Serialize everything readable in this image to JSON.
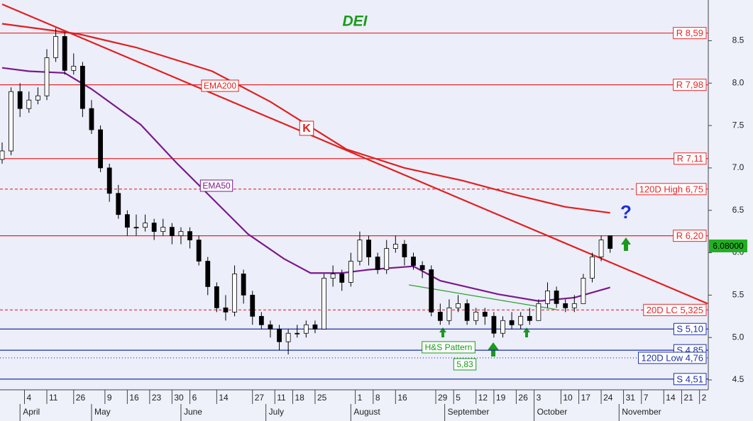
{
  "chart_data": {
    "type": "candlestick",
    "title": "DEI",
    "x": [
      0,
      2,
      4,
      6,
      8,
      10,
      12,
      14,
      16,
      18,
      20,
      22,
      24,
      26,
      28,
      30,
      32,
      34,
      36,
      38,
      40,
      42,
      44,
      46,
      48,
      50,
      52,
      54,
      56,
      58,
      60,
      62,
      64,
      66,
      68,
      70,
      72,
      74,
      76,
      78,
      80,
      82,
      84,
      86,
      88,
      90,
      92,
      94,
      96,
      98,
      100,
      102,
      104,
      106,
      108,
      110,
      112,
      114,
      116,
      118,
      120,
      122,
      124,
      126,
      128,
      130,
      132,
      134,
      136
    ],
    "open": [
      7.1,
      7.2,
      7.9,
      7.7,
      7.8,
      7.85,
      8.3,
      8.55,
      8.15,
      8.2,
      7.7,
      7.45,
      7.0,
      6.7,
      6.45,
      6.3,
      6.3,
      6.35,
      6.25,
      6.3,
      6.2,
      6.25,
      6.15,
      5.9,
      5.6,
      5.35,
      5.3,
      5.75,
      5.5,
      5.25,
      5.15,
      5.1,
      4.95,
      5.05,
      5.05,
      5.15,
      5.1,
      5.7,
      5.75,
      5.65,
      5.9,
      6.15,
      5.95,
      5.8,
      6.05,
      6.1,
      5.95,
      5.85,
      5.8,
      5.3,
      5.2,
      5.35,
      5.4,
      5.2,
      5.3,
      5.25,
      5.05,
      5.2,
      5.15,
      5.25,
      5.2,
      5.4,
      5.55,
      5.4,
      5.35,
      5.4,
      5.7,
      5.95,
      6.2
    ],
    "high": [
      7.3,
      7.95,
      8.0,
      7.9,
      7.95,
      8.4,
      8.65,
      8.6,
      8.35,
      8.25,
      7.8,
      7.5,
      7.05,
      6.8,
      6.5,
      6.45,
      6.45,
      6.4,
      6.4,
      6.35,
      6.3,
      6.3,
      6.2,
      5.95,
      5.65,
      5.5,
      5.85,
      5.8,
      5.55,
      5.3,
      5.2,
      5.15,
      5.1,
      5.15,
      5.2,
      5.2,
      5.75,
      5.85,
      5.8,
      6.0,
      6.25,
      6.2,
      6.0,
      6.15,
      6.2,
      6.15,
      6.0,
      5.9,
      5.85,
      5.4,
      5.45,
      5.5,
      5.45,
      5.35,
      5.35,
      5.3,
      5.25,
      5.3,
      5.3,
      5.35,
      5.45,
      5.65,
      5.6,
      5.45,
      5.5,
      5.75,
      6.0,
      6.2,
      6.2
    ],
    "low": [
      7.05,
      7.15,
      7.6,
      7.65,
      7.75,
      7.8,
      8.25,
      8.1,
      8.1,
      7.6,
      7.4,
      6.95,
      6.6,
      6.4,
      6.2,
      6.2,
      6.25,
      6.15,
      6.2,
      6.1,
      6.1,
      6.05,
      5.85,
      5.5,
      5.3,
      5.2,
      5.25,
      5.4,
      5.15,
      5.1,
      5.0,
      4.85,
      4.8,
      5.0,
      5.0,
      5.05,
      5.1,
      5.6,
      5.55,
      5.6,
      5.85,
      5.85,
      5.75,
      5.75,
      6.0,
      5.85,
      5.8,
      5.7,
      5.25,
      5.15,
      5.15,
      5.3,
      5.15,
      5.15,
      5.15,
      5.0,
      5.0,
      5.1,
      5.1,
      5.15,
      5.2,
      5.35,
      5.35,
      5.3,
      5.3,
      5.4,
      5.65,
      5.9,
      6.0
    ],
    "close": [
      7.2,
      7.9,
      7.7,
      7.8,
      7.85,
      8.3,
      8.55,
      8.15,
      8.2,
      7.7,
      7.45,
      7.0,
      6.7,
      6.45,
      6.3,
      6.3,
      6.35,
      6.25,
      6.3,
      6.2,
      6.25,
      6.15,
      5.9,
      5.6,
      5.35,
      5.3,
      5.75,
      5.5,
      5.25,
      5.15,
      5.1,
      4.95,
      5.05,
      5.05,
      5.15,
      5.1,
      5.7,
      5.75,
      5.65,
      5.9,
      6.15,
      5.95,
      5.8,
      6.05,
      6.1,
      5.95,
      5.85,
      5.8,
      5.3,
      5.2,
      5.35,
      5.4,
      5.2,
      5.3,
      5.25,
      5.05,
      5.2,
      5.15,
      5.25,
      5.2,
      5.4,
      5.55,
      5.4,
      5.35,
      5.4,
      5.7,
      5.95,
      6.15,
      6.05
    ],
    "xlim": [
      0,
      157.8
    ],
    "ylim": [
      4.4,
      8.98
    ],
    "xticks": [
      {
        "value": 5,
        "label": "4"
      },
      {
        "value": 10,
        "label": "11"
      },
      {
        "value": 16,
        "label": "26"
      },
      {
        "value": 23,
        "label": "9"
      },
      {
        "value": 28,
        "label": "16"
      },
      {
        "value": 33,
        "label": "23"
      },
      {
        "value": 38,
        "label": "30"
      },
      {
        "value": 42,
        "label": "6"
      },
      {
        "value": 48,
        "label": "14"
      },
      {
        "value": 56,
        "label": "27"
      },
      {
        "value": 61,
        "label": "11"
      },
      {
        "value": 65,
        "label": "18"
      },
      {
        "value": 70,
        "label": "25"
      },
      {
        "value": 79,
        "label": "1"
      },
      {
        "value": 83,
        "label": "8"
      },
      {
        "value": 88,
        "label": "16"
      },
      {
        "value": 97,
        "label": "29"
      },
      {
        "value": 101,
        "label": "5"
      },
      {
        "value": 106,
        "label": "12"
      },
      {
        "value": 110,
        "label": "19"
      },
      {
        "value": 115,
        "label": "26"
      },
      {
        "value": 119,
        "label": "3"
      },
      {
        "value": 125,
        "label": "10"
      },
      {
        "value": 129,
        "label": "17"
      },
      {
        "value": 134,
        "label": "24"
      },
      {
        "value": 139,
        "label": "31"
      },
      {
        "value": 143,
        "label": "7"
      },
      {
        "value": 148,
        "label": "14"
      },
      {
        "value": 152,
        "label": "21"
      },
      {
        "value": 156,
        "label": "2"
      }
    ],
    "month_labels": [
      {
        "value": 4,
        "label": "April"
      },
      {
        "value": 20,
        "label": "May"
      },
      {
        "value": 40,
        "label": "June"
      },
      {
        "value": 59,
        "label": "July"
      },
      {
        "value": 78,
        "label": "August"
      },
      {
        "value": 99,
        "label": "September"
      },
      {
        "value": 119,
        "label": "October"
      },
      {
        "value": 138,
        "label": "November"
      }
    ],
    "yticks": [
      4.5,
      {
        "value": 5,
        "label": "5.0"
      },
      5.5,
      {
        "value": 6,
        "label": "6.0"
      },
      6.5,
      {
        "value": 7,
        "label": "7.0"
      },
      7.5,
      {
        "value": 8,
        "label": "8.0"
      },
      8.5
    ],
    "lines": [
      {
        "name": "EMA200",
        "color": "#e02020",
        "x": [
          0,
          17,
          30,
          47,
          60,
          77,
          90,
          103,
          115,
          126,
          136
        ],
        "values": [
          8.7,
          8.58,
          8.42,
          8.14,
          7.78,
          7.22,
          7.0,
          6.85,
          6.68,
          6.54,
          6.47
        ]
      },
      {
        "name": "EMA50",
        "color": "#7a1a8c",
        "x": [
          0,
          6,
          14,
          20,
          31,
          39,
          47,
          55,
          63,
          69,
          76,
          82,
          92,
          98,
          111,
          120,
          128,
          136
        ],
        "values": [
          8.18,
          8.14,
          8.12,
          7.93,
          7.51,
          7.06,
          6.64,
          6.22,
          5.93,
          5.76,
          5.76,
          5.8,
          5.84,
          5.67,
          5.51,
          5.43,
          5.47,
          5.59
        ]
      },
      {
        "color": "#e02020",
        "x": [
          0,
          157.8
        ],
        "values": [
          8.93,
          5.4
        ]
      },
      {
        "color": "#2ca02c",
        "x": [
          91,
          124
        ],
        "values": [
          5.62,
          5.33
        ]
      }
    ],
    "levels": [
      {
        "value": 8.59,
        "label": "R 8,59",
        "color": "#e8272a",
        "style": "solid"
      },
      {
        "value": 7.98,
        "label": "R 7,98",
        "color": "#e8272a",
        "style": "solid"
      },
      {
        "value": 7.11,
        "label": "R 7,11",
        "color": "#e8272a",
        "style": "solid"
      },
      {
        "value": 6.75,
        "label": "120D High 6,75",
        "color": "#e8272a",
        "style": "dashed"
      },
      {
        "value": 6.2,
        "label": "R 6,20",
        "color": "#e8272a",
        "style": "solid"
      },
      {
        "value": 5.325,
        "label": "20D LC 5,325",
        "color": "#e8272a",
        "style": "dashed"
      },
      {
        "value": 5.1,
        "label": "S 5,10",
        "color": "#1c2fa8",
        "style": "solid"
      },
      {
        "value": 4.85,
        "label": "S 4,85",
        "color": "#1c2fa8",
        "style": "solid"
      },
      {
        "value": 4.76,
        "label": "120D Low 4,76",
        "color": "#1c2fa8",
        "style": "dotted"
      },
      {
        "value": 4.51,
        "label": "S 4,51",
        "color": "#1c2fa8",
        "style": "solid"
      }
    ],
    "last_price": {
      "value": 6.08,
      "label": "6.08000"
    },
    "annotations": [
      "K",
      "H&S Pattern",
      "5,83",
      "?"
    ]
  }
}
